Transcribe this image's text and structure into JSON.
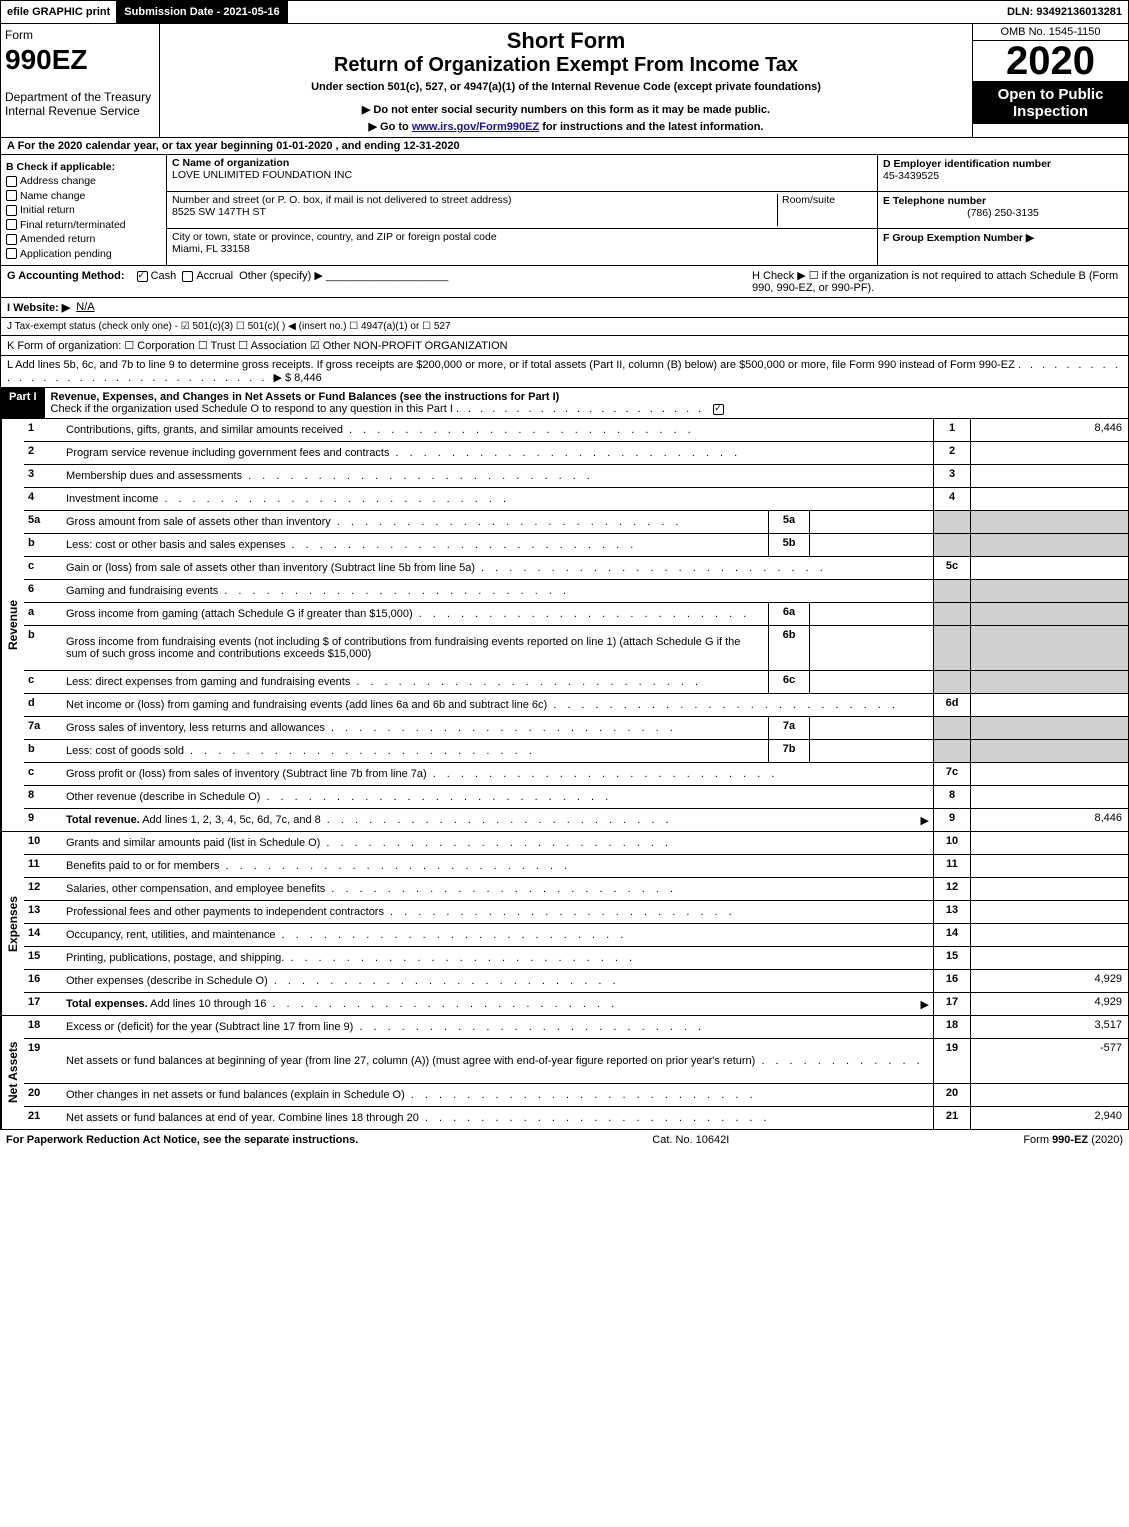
{
  "top_bar": {
    "efile": "efile GRAPHIC print",
    "submission": "Submission Date - 2021-05-16",
    "dln": "DLN: 93492136013281"
  },
  "header": {
    "form_word": "Form",
    "form_num": "990EZ",
    "dept": "Department of the Treasury",
    "irs": "Internal Revenue Service",
    "title1": "Short Form",
    "title2": "Return of Organization Exempt From Income Tax",
    "subtitle": "Under section 501(c), 527, or 4947(a)(1) of the Internal Revenue Code (except private foundations)",
    "warn": "▶ Do not enter social security numbers on this form as it may be made public.",
    "goto_pre": "▶ Go to ",
    "goto_link": "www.irs.gov/Form990EZ",
    "goto_post": " for instructions and the latest information.",
    "omb": "OMB No. 1545-1150",
    "year": "2020",
    "open": "Open to Public Inspection"
  },
  "row_a": "A  For the 2020 calendar year, or tax year beginning 01-01-2020 , and ending 12-31-2020",
  "section_b": {
    "title": "B  Check if applicable:",
    "items": [
      "Address change",
      "Name change",
      "Initial return",
      "Final return/terminated",
      "Amended return",
      "Application pending"
    ]
  },
  "section_c": {
    "c_label": "C Name of organization",
    "c_value": "LOVE UNLIMITED FOUNDATION INC",
    "street_label": "Number and street (or P. O. box, if mail is not delivered to street address)",
    "room_label": "Room/suite",
    "street_value": "8525 SW 147TH ST",
    "city_label": "City or town, state or province, country, and ZIP or foreign postal code",
    "city_value": "Miami, FL  33158"
  },
  "section_d": {
    "label": "D Employer identification number",
    "value": "45-3439525"
  },
  "section_e": {
    "label": "E Telephone number",
    "value": "(786) 250-3135"
  },
  "section_f": {
    "label": "F Group Exemption Number   ▶",
    "value": ""
  },
  "row_g": {
    "label": "G Accounting Method:",
    "opts": [
      "Cash",
      "Accrual",
      "Other (specify) ▶"
    ],
    "checked": 0
  },
  "row_h": "H  Check ▶   ☐  if the organization is not required to attach Schedule B (Form 990, 990-EZ, or 990-PF).",
  "row_i": {
    "label": "I Website: ▶",
    "value": "N/A"
  },
  "row_j": "J Tax-exempt status (check only one) - ☑ 501(c)(3)  ☐ 501(c)(  ) ◀ (insert no.)  ☐ 4947(a)(1) or  ☐ 527",
  "row_k": "K Form of organization:   ☐ Corporation   ☐ Trust   ☐ Association   ☑ Other NON-PROFIT ORGANIZATION",
  "row_l": {
    "text": "L Add lines 5b, 6c, and 7b to line 9 to determine gross receipts. If gross receipts are $200,000 or more, or if total assets (Part II, column (B) below) are $500,000 or more, file Form 990 instead of Form 990-EZ",
    "amount": "▶ $ 8,446"
  },
  "part1": {
    "label": "Part I",
    "title": "Revenue, Expenses, and Changes in Net Assets or Fund Balances (see the instructions for Part I)",
    "check_note": "Check if the organization used Schedule O to respond to any question in this Part I",
    "checked": true
  },
  "sections": {
    "revenue": {
      "side": "Revenue",
      "lines": [
        {
          "num": "1",
          "desc": "Contributions, gifts, grants, and similar amounts received",
          "col": "1",
          "val": "8,446"
        },
        {
          "num": "2",
          "desc": "Program service revenue including government fees and contracts",
          "col": "2",
          "val": ""
        },
        {
          "num": "3",
          "desc": "Membership dues and assessments",
          "col": "3",
          "val": ""
        },
        {
          "num": "4",
          "desc": "Investment income",
          "col": "4",
          "val": ""
        },
        {
          "num": "5a",
          "desc": "Gross amount from sale of assets other than inventory",
          "sub": "5a",
          "subval": "",
          "shade": true
        },
        {
          "num": "b",
          "desc": "Less: cost or other basis and sales expenses",
          "sub": "5b",
          "subval": "",
          "shade": true
        },
        {
          "num": "c",
          "desc": "Gain or (loss) from sale of assets other than inventory (Subtract line 5b from line 5a)",
          "col": "5c",
          "val": ""
        },
        {
          "num": "6",
          "desc": "Gaming and fundraising events",
          "shade_all": true
        },
        {
          "num": "a",
          "desc": "Gross income from gaming (attach Schedule G if greater than $15,000)",
          "sub": "6a",
          "subval": "",
          "shade": true
        },
        {
          "num": "b",
          "desc": "Gross income from fundraising events (not including $                          of contributions from fundraising events reported on line 1) (attach Schedule G if the sum of such gross income and contributions exceeds $15,000)",
          "sub": "6b",
          "subval": "",
          "shade": true,
          "tall": true
        },
        {
          "num": "c",
          "desc": "Less: direct expenses from gaming and fundraising events",
          "sub": "6c",
          "subval": "",
          "shade": true
        },
        {
          "num": "d",
          "desc": "Net income or (loss) from gaming and fundraising events (add lines 6a and 6b and subtract line 6c)",
          "col": "6d",
          "val": ""
        },
        {
          "num": "7a",
          "desc": "Gross sales of inventory, less returns and allowances",
          "sub": "7a",
          "subval": "",
          "shade": true
        },
        {
          "num": "b",
          "desc": "Less: cost of goods sold",
          "sub": "7b",
          "subval": "",
          "shade": true
        },
        {
          "num": "c",
          "desc": "Gross profit or (loss) from sales of inventory (Subtract line 7b from line 7a)",
          "col": "7c",
          "val": ""
        },
        {
          "num": "8",
          "desc": "Other revenue (describe in Schedule O)",
          "col": "8",
          "val": ""
        },
        {
          "num": "9",
          "desc": "Total revenue. Add lines 1, 2, 3, 4, 5c, 6d, 7c, and 8",
          "col": "9",
          "val": "8,446",
          "bold": true,
          "arrow": true
        }
      ]
    },
    "expenses": {
      "side": "Expenses",
      "lines": [
        {
          "num": "10",
          "desc": "Grants and similar amounts paid (list in Schedule O)",
          "col": "10",
          "val": ""
        },
        {
          "num": "11",
          "desc": "Benefits paid to or for members",
          "col": "11",
          "val": ""
        },
        {
          "num": "12",
          "desc": "Salaries, other compensation, and employee benefits",
          "col": "12",
          "val": ""
        },
        {
          "num": "13",
          "desc": "Professional fees and other payments to independent contractors",
          "col": "13",
          "val": ""
        },
        {
          "num": "14",
          "desc": "Occupancy, rent, utilities, and maintenance",
          "col": "14",
          "val": ""
        },
        {
          "num": "15",
          "desc": "Printing, publications, postage, and shipping.",
          "col": "15",
          "val": ""
        },
        {
          "num": "16",
          "desc": "Other expenses (describe in Schedule O)",
          "col": "16",
          "val": "4,929"
        },
        {
          "num": "17",
          "desc": "Total expenses. Add lines 10 through 16",
          "col": "17",
          "val": "4,929",
          "bold": true,
          "arrow": true
        }
      ]
    },
    "netassets": {
      "side": "Net Assets",
      "lines": [
        {
          "num": "18",
          "desc": "Excess or (deficit) for the year (Subtract line 17 from line 9)",
          "col": "18",
          "val": "3,517"
        },
        {
          "num": "19",
          "desc": "Net assets or fund balances at beginning of year (from line 27, column (A)) (must agree with end-of-year figure reported on prior year's return)",
          "col": "19",
          "val": "-577",
          "tall": true
        },
        {
          "num": "20",
          "desc": "Other changes in net assets or fund balances (explain in Schedule O)",
          "col": "20",
          "val": ""
        },
        {
          "num": "21",
          "desc": "Net assets or fund balances at end of year. Combine lines 18 through 20",
          "col": "21",
          "val": "2,940"
        }
      ]
    }
  },
  "footer": {
    "left": "For Paperwork Reduction Act Notice, see the separate instructions.",
    "center": "Cat. No. 10642I",
    "right": "Form 990-EZ (2020)"
  },
  "colors": {
    "black": "#000000",
    "white": "#ffffff",
    "shade": "#d0d0d0",
    "link": "#1a0dab"
  }
}
